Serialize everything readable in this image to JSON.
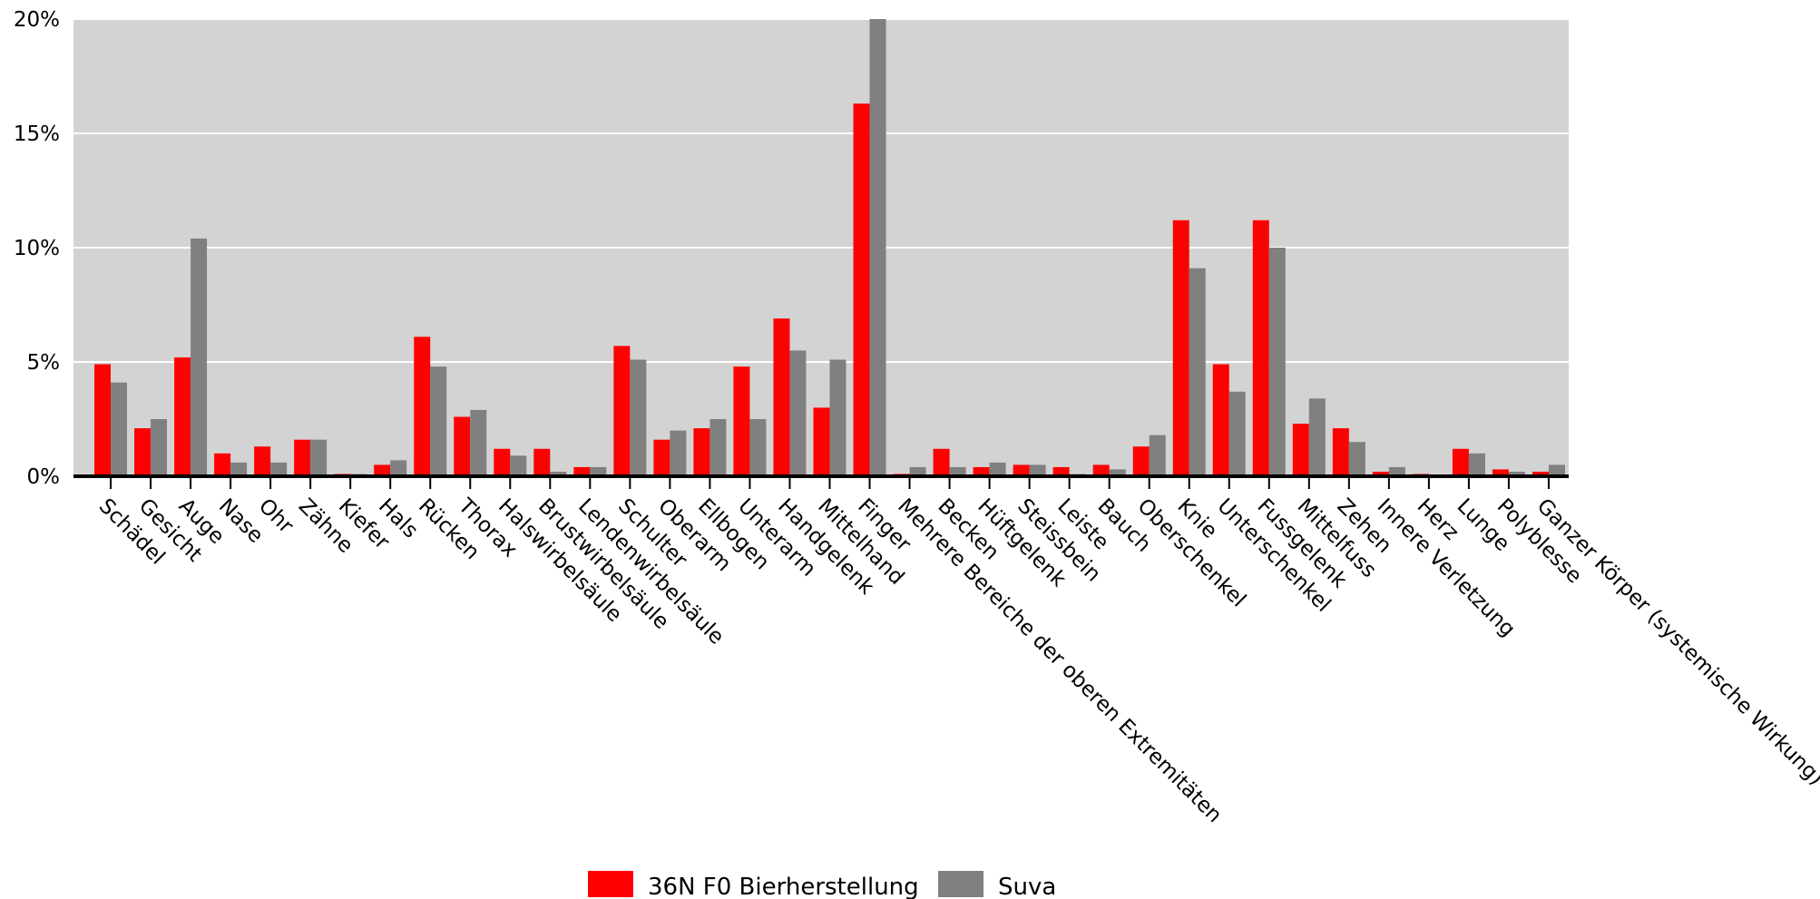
{
  "chart_data": {
    "type": "bar",
    "title": "",
    "xlabel": "",
    "ylabel": "",
    "ylim": [
      0,
      20
    ],
    "y_ticks": [
      0,
      5,
      10,
      15,
      20
    ],
    "y_tick_labels": [
      "0%",
      "5%",
      "10%",
      "15%",
      "20%"
    ],
    "grid": true,
    "legend_position": "bottom",
    "plot_background": "#d3d3d3",
    "categories": [
      "Schädel",
      "Gesicht",
      "Auge",
      "Nase",
      "Ohr",
      "Zähne",
      "Kiefer",
      "Hals",
      "Rücken",
      "Thorax",
      "Halswirbelsäule",
      "Brustwirbelsäule",
      "Lendenwirbelsäule",
      "Schulter",
      "Oberarm",
      "Ellbogen",
      "Unterarm",
      "Handgelenk",
      "Mittelhand",
      "Finger",
      "Mehrere Bereiche der oberen Extremitäten",
      "Becken",
      "Hüftgelenk",
      "Steissbein",
      "Leiste",
      "Bauch",
      "Oberschenkel",
      "Knie",
      "Unterschenkel",
      "Fussgelenk",
      "Mittelfuss",
      "Zehen",
      "Innere Verletzung",
      "Herz",
      "Lunge",
      "Polyblesse",
      "Ganzer Körper (systemische Wirkung)"
    ],
    "series": [
      {
        "name": "36N F0 Bierherstellung",
        "color": "#ff0000",
        "values": [
          4.9,
          2.1,
          5.2,
          1.0,
          1.3,
          1.6,
          0.1,
          0.5,
          6.1,
          2.6,
          1.2,
          1.2,
          0.4,
          5.7,
          1.6,
          2.1,
          4.8,
          6.9,
          3.0,
          16.3,
          0.1,
          1.2,
          0.4,
          0.5,
          0.4,
          0.5,
          1.3,
          11.2,
          4.9,
          11.2,
          2.3,
          2.1,
          0.2,
          0.1,
          1.2,
          0.3,
          0.2
        ]
      },
      {
        "name": "Suva",
        "color": "#808080",
        "values": [
          4.1,
          2.5,
          10.4,
          0.6,
          0.6,
          1.6,
          0.1,
          0.7,
          4.8,
          2.9,
          0.9,
          0.2,
          0.4,
          5.1,
          2.0,
          2.5,
          2.5,
          5.5,
          5.1,
          20.0,
          0.4,
          0.4,
          0.6,
          0.5,
          0.1,
          0.3,
          1.8,
          9.1,
          3.7,
          10.0,
          3.4,
          1.5,
          0.4,
          0.0,
          1.0,
          0.2,
          0.5
        ]
      }
    ]
  }
}
